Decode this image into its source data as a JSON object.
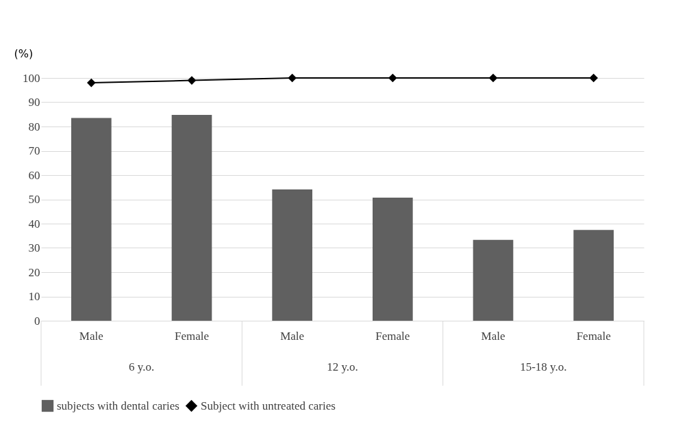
{
  "chart_data": {
    "type": "bar",
    "ylabel": "(%)",
    "categories": [
      "Male",
      "Female",
      "Male",
      "Female",
      "Male",
      "Female"
    ],
    "series": [
      {
        "name": "subjects with dental caries",
        "color": "#606060",
        "values": [
          83.5,
          84.8,
          54.1,
          50.7,
          33.3,
          37.4
        ]
      },
      {
        "name": "Subject with untreated caries",
        "type": "line",
        "color": "#000000",
        "values": [
          98,
          99,
          100,
          100,
          100,
          100
        ]
      }
    ],
    "annotations": [
      "6 y.o.",
      "12 y.o.",
      "15-18 y.o."
    ],
    "ylim": [
      0,
      100
    ],
    "yticks": [
      0,
      10,
      20,
      30,
      40,
      50,
      60,
      70,
      80,
      90,
      100
    ],
    "grid": "y",
    "legend": "bottom",
    "marker": "diamond",
    "line_style": "solid"
  }
}
